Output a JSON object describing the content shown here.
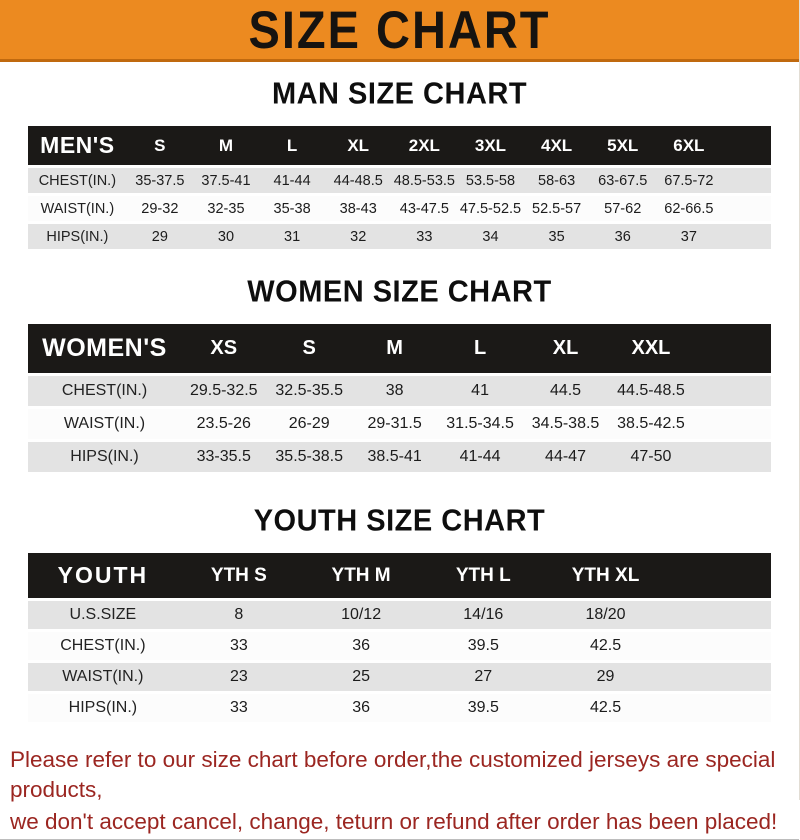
{
  "colors": {
    "banner_bg": "#EC8A20",
    "banner_edge": "#C0690E",
    "header_bar_bg": "#1B1917",
    "stripe_gray": "#E3E3E3",
    "stripe_white": "#FCFCFC",
    "disclaimer_red": "#9B2621"
  },
  "banner": {
    "title": "SIZE CHART"
  },
  "sections": [
    {
      "id": "men",
      "heading": "MAN SIZE CHART",
      "group_label": "MEN'S",
      "columns": [
        "S",
        "M",
        "L",
        "XL",
        "2XL",
        "3XL",
        "4XL",
        "5XL",
        "6XL"
      ],
      "rows": [
        {
          "label": "CHEST(IN.)",
          "values": [
            "35-37.5",
            "37.5-41",
            "41-44",
            "44-48.5",
            "48.5-53.5",
            "53.5-58",
            "58-63",
            "63-67.5",
            "67.5-72"
          ]
        },
        {
          "label": "WAIST(IN.)",
          "values": [
            "29-32",
            "32-35",
            "35-38",
            "38-43",
            "43-47.5",
            "47.5-52.5",
            "52.5-57",
            "57-62",
            "62-66.5"
          ]
        },
        {
          "label": "HIPS(IN.)",
          "values": [
            "29",
            "30",
            "31",
            "32",
            "33",
            "34",
            "35",
            "36",
            "37"
          ]
        }
      ]
    },
    {
      "id": "women",
      "heading": "WOMEN SIZE CHART",
      "group_label": "WOMEN'S",
      "columns": [
        "XS",
        "S",
        "M",
        "L",
        "XL",
        "XXL"
      ],
      "rows": [
        {
          "label": "CHEST(IN.)",
          "values": [
            "29.5-32.5",
            "32.5-35.5",
            "38",
            "41",
            "44.5",
            "44.5-48.5"
          ]
        },
        {
          "label": "WAIST(IN.)",
          "values": [
            "23.5-26",
            "26-29",
            "29-31.5",
            "31.5-34.5",
            "34.5-38.5",
            "38.5-42.5"
          ]
        },
        {
          "label": "HIPS(IN.)",
          "values": [
            "33-35.5",
            "35.5-38.5",
            "38.5-41",
            "41-44",
            "44-47",
            "47-50"
          ]
        }
      ]
    },
    {
      "id": "youth",
      "heading": "YOUTH SIZE CHART",
      "group_label": "YOUTH",
      "columns": [
        "YTH S",
        "YTH M",
        "YTH L",
        "YTH XL"
      ],
      "rows": [
        {
          "label": "U.S.SIZE",
          "values": [
            "8",
            "10/12",
            "14/16",
            "18/20"
          ]
        },
        {
          "label": "CHEST(IN.)",
          "values": [
            "33",
            "36",
            "39.5",
            "42.5"
          ]
        },
        {
          "label": "WAIST(IN.)",
          "values": [
            "23",
            "25",
            "27",
            "29"
          ]
        },
        {
          "label": "HIPS(IN.)",
          "values": [
            "33",
            "36",
            "39.5",
            "42.5"
          ]
        }
      ]
    }
  ],
  "footer": {
    "line1": "Please refer to our size chart before order,the customized jerseys are special products,",
    "line2": "we don't accept cancel, change, teturn or refund after order has been placed!"
  }
}
